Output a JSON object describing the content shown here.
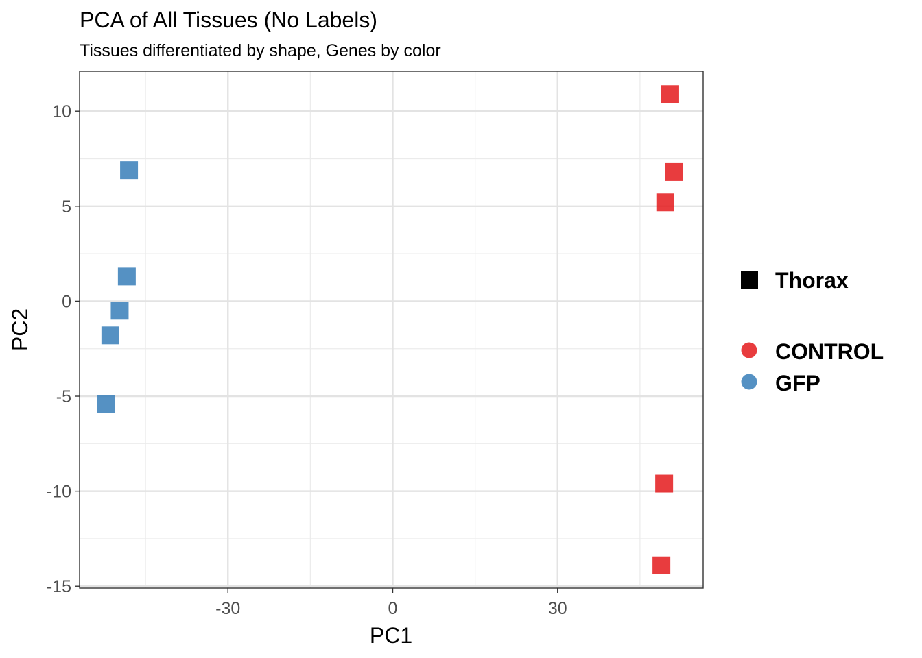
{
  "chart_data": {
    "type": "scatter",
    "title": "PCA of All Tissues (No Labels)",
    "subtitle": "Tissues differentiated by shape, Genes by color",
    "xlabel": "PC1",
    "ylabel": "PC2",
    "xlim": [
      -57,
      56.5
    ],
    "ylim": [
      -15.1,
      12.1
    ],
    "xticks": [
      -30,
      0,
      30
    ],
    "yticks": [
      10,
      5,
      0,
      -5,
      -10,
      -15
    ],
    "grid": true,
    "legend_position": "right",
    "shape_legend": [
      {
        "label": "Thorax",
        "shape": "square"
      }
    ],
    "series": [
      {
        "name": "CONTROL",
        "color": "#e41a1c",
        "points": [
          {
            "x": 50.5,
            "y": 10.9
          },
          {
            "x": 51.2,
            "y": 6.8
          },
          {
            "x": 49.6,
            "y": 5.2
          },
          {
            "x": 49.4,
            "y": -9.6
          },
          {
            "x": 48.9,
            "y": -13.9
          }
        ]
      },
      {
        "name": "GFP",
        "color": "#377eb8",
        "points": [
          {
            "x": -48.0,
            "y": 6.9
          },
          {
            "x": -48.4,
            "y": 1.3
          },
          {
            "x": -49.7,
            "y": -0.5
          },
          {
            "x": -51.4,
            "y": -1.8
          },
          {
            "x": -52.2,
            "y": -5.4
          }
        ]
      }
    ]
  }
}
